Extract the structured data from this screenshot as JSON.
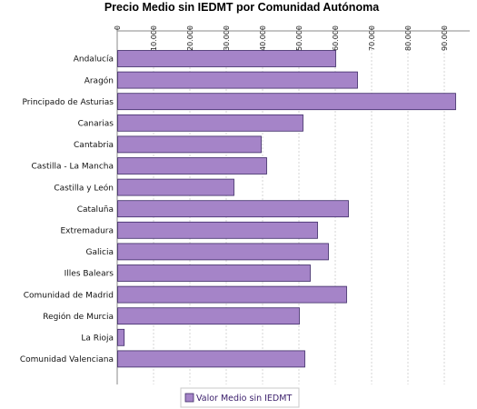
{
  "chart_data": {
    "type": "bar",
    "orientation": "horizontal",
    "title": "Precio Medio sin IEDMT por Comunidad Autónoma",
    "categories": [
      "Andalucía",
      "Aragón",
      "Principado de Asturias",
      "Canarias",
      "Cantabria",
      "Castilla - La Mancha",
      "Castilla y León",
      "Cataluña",
      "Extremadura",
      "Galicia",
      "Illes Balears",
      "Comunidad de Madrid",
      "Región de Murcia",
      "La Rioja",
      "Comunidad Valenciana"
    ],
    "series": [
      {
        "name": "Valor Medio sin IEDMT",
        "values": [
          60000,
          66000,
          93000,
          51000,
          39500,
          41000,
          32000,
          63500,
          55000,
          58000,
          53000,
          63000,
          50000,
          1800,
          51500
        ]
      }
    ],
    "xlim": [
      0,
      97000
    ],
    "xticks": [
      "0",
      "10.000",
      "20.000",
      "30.000",
      "40.000",
      "50.000",
      "60.000",
      "70.000",
      "80.000",
      "90.000"
    ],
    "tick_values": [
      0,
      10000,
      20000,
      30000,
      40000,
      50000,
      60000,
      70000,
      80000,
      90000
    ],
    "grid": true,
    "axis_position": "top",
    "legend_position": "bottom",
    "bar_color": "#a584c8",
    "bar_edge_color": "#3d2a66"
  }
}
